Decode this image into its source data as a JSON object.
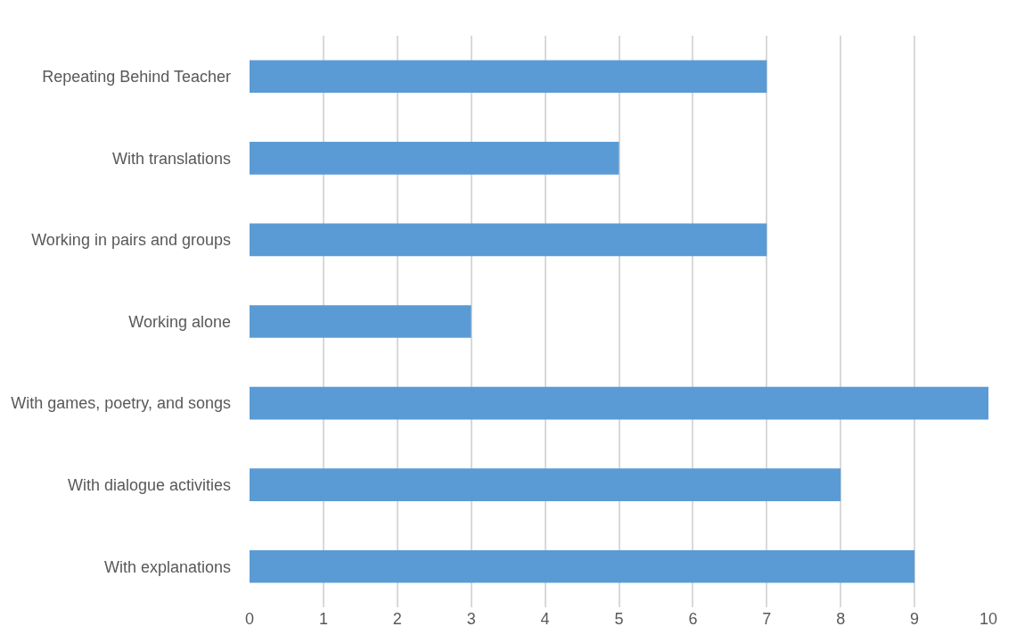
{
  "chart_data": {
    "type": "bar",
    "orientation": "horizontal",
    "categories": [
      "Repeating Behind Teacher",
      "With translations",
      "Working in pairs and groups",
      "Working alone",
      "With games, poetry, and songs",
      "With dialogue activities",
      "With explanations"
    ],
    "values": [
      7,
      5,
      7,
      3,
      10,
      8,
      9
    ],
    "color": "#5b9bd5",
    "xlim": [
      0,
      10
    ],
    "xticks": [
      0,
      1,
      2,
      3,
      4,
      5,
      6,
      7,
      8,
      9,
      10
    ],
    "grid": "x"
  }
}
